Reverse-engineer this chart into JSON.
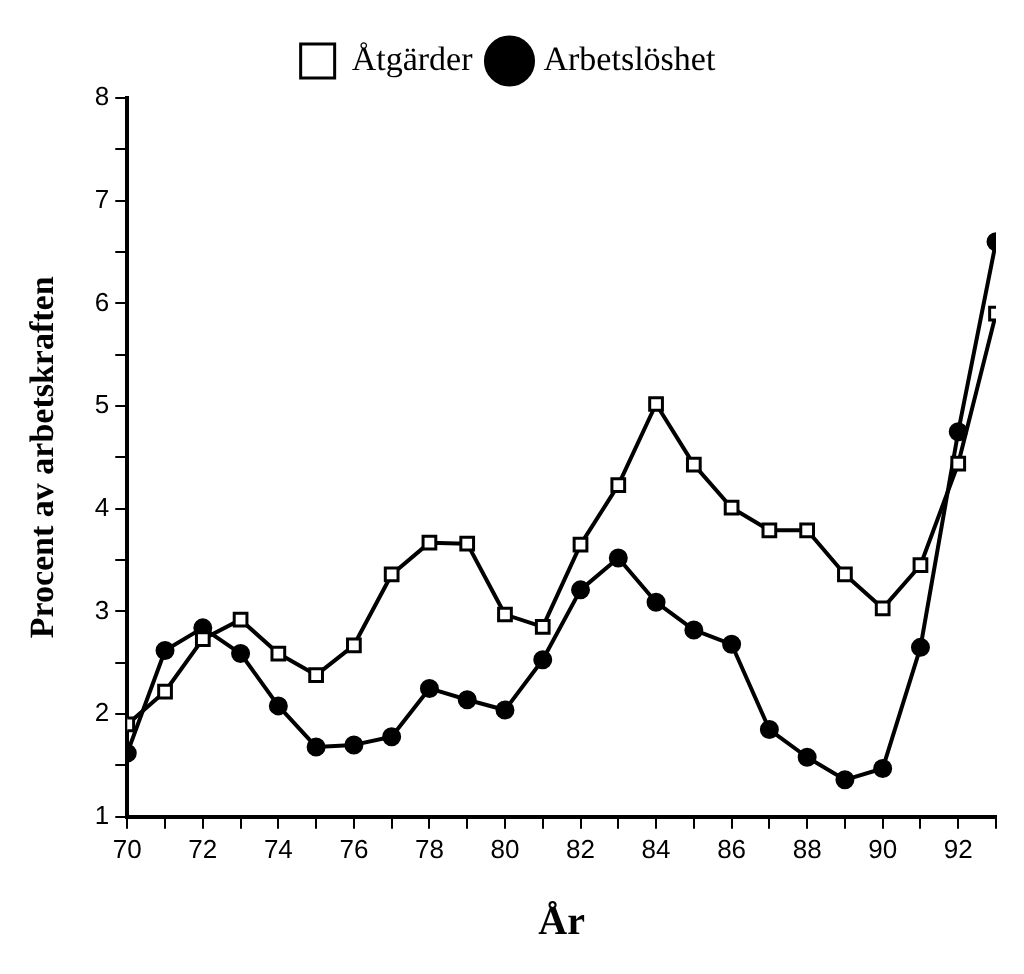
{
  "chart_data": {
    "type": "line",
    "xlabel": "År",
    "ylabel": "Procent av arbetskraften",
    "x": [
      70,
      71,
      72,
      73,
      74,
      75,
      76,
      77,
      78,
      79,
      80,
      81,
      82,
      83,
      84,
      85,
      86,
      87,
      88,
      89,
      90,
      91,
      92,
      93
    ],
    "series": [
      {
        "name": "Åtgärder",
        "color": "#000000",
        "marker": "square",
        "values": [
          1.9,
          2.22,
          2.73,
          2.92,
          2.59,
          2.38,
          2.67,
          3.36,
          3.67,
          3.66,
          2.97,
          2.85,
          3.65,
          4.23,
          5.02,
          4.43,
          4.01,
          3.79,
          3.79,
          3.36,
          3.03,
          3.45,
          4.44,
          5.9
        ]
      },
      {
        "name": "Arbetslöshet",
        "color": "#000000",
        "marker": "circle",
        "values": [
          1.62,
          2.62,
          2.84,
          2.59,
          2.08,
          1.68,
          1.7,
          1.78,
          2.25,
          2.14,
          2.04,
          2.53,
          3.21,
          3.52,
          3.09,
          2.82,
          2.68,
          1.85,
          1.58,
          1.36,
          1.47,
          2.65,
          4.75,
          6.6
        ]
      }
    ],
    "xlim": [
      70,
      93
    ],
    "xticks": [
      70,
      {
        "value": 71,
        "label": null
      },
      72,
      {
        "value": 73,
        "label": null
      },
      74,
      {
        "value": 75,
        "label": null
      },
      76,
      {
        "value": 77,
        "label": null
      },
      78,
      {
        "value": 79,
        "label": null
      },
      80,
      {
        "value": 81,
        "label": null
      },
      82,
      {
        "value": 83,
        "label": null
      },
      84,
      {
        "value": 85,
        "label": null
      },
      86,
      {
        "value": 87,
        "label": null
      },
      88,
      {
        "value": 89,
        "label": null
      },
      90,
      {
        "value": 91,
        "label": null
      },
      92,
      {
        "value": 93,
        "label": null
      }
    ],
    "ylim": [
      1,
      8
    ],
    "yticks": [
      1,
      {
        "value": 1.5,
        "label": null
      },
      2,
      {
        "value": 2.5,
        "label": null
      },
      3,
      {
        "value": 3.5,
        "label": null
      },
      4,
      {
        "value": 4.5,
        "label": null
      },
      5,
      {
        "value": 5.5,
        "label": null
      },
      6,
      {
        "value": 6.5,
        "label": null
      },
      7,
      {
        "value": 7.5,
        "label": null
      },
      8
    ],
    "grid": false,
    "legend": "top",
    "line_style": "solid"
  }
}
